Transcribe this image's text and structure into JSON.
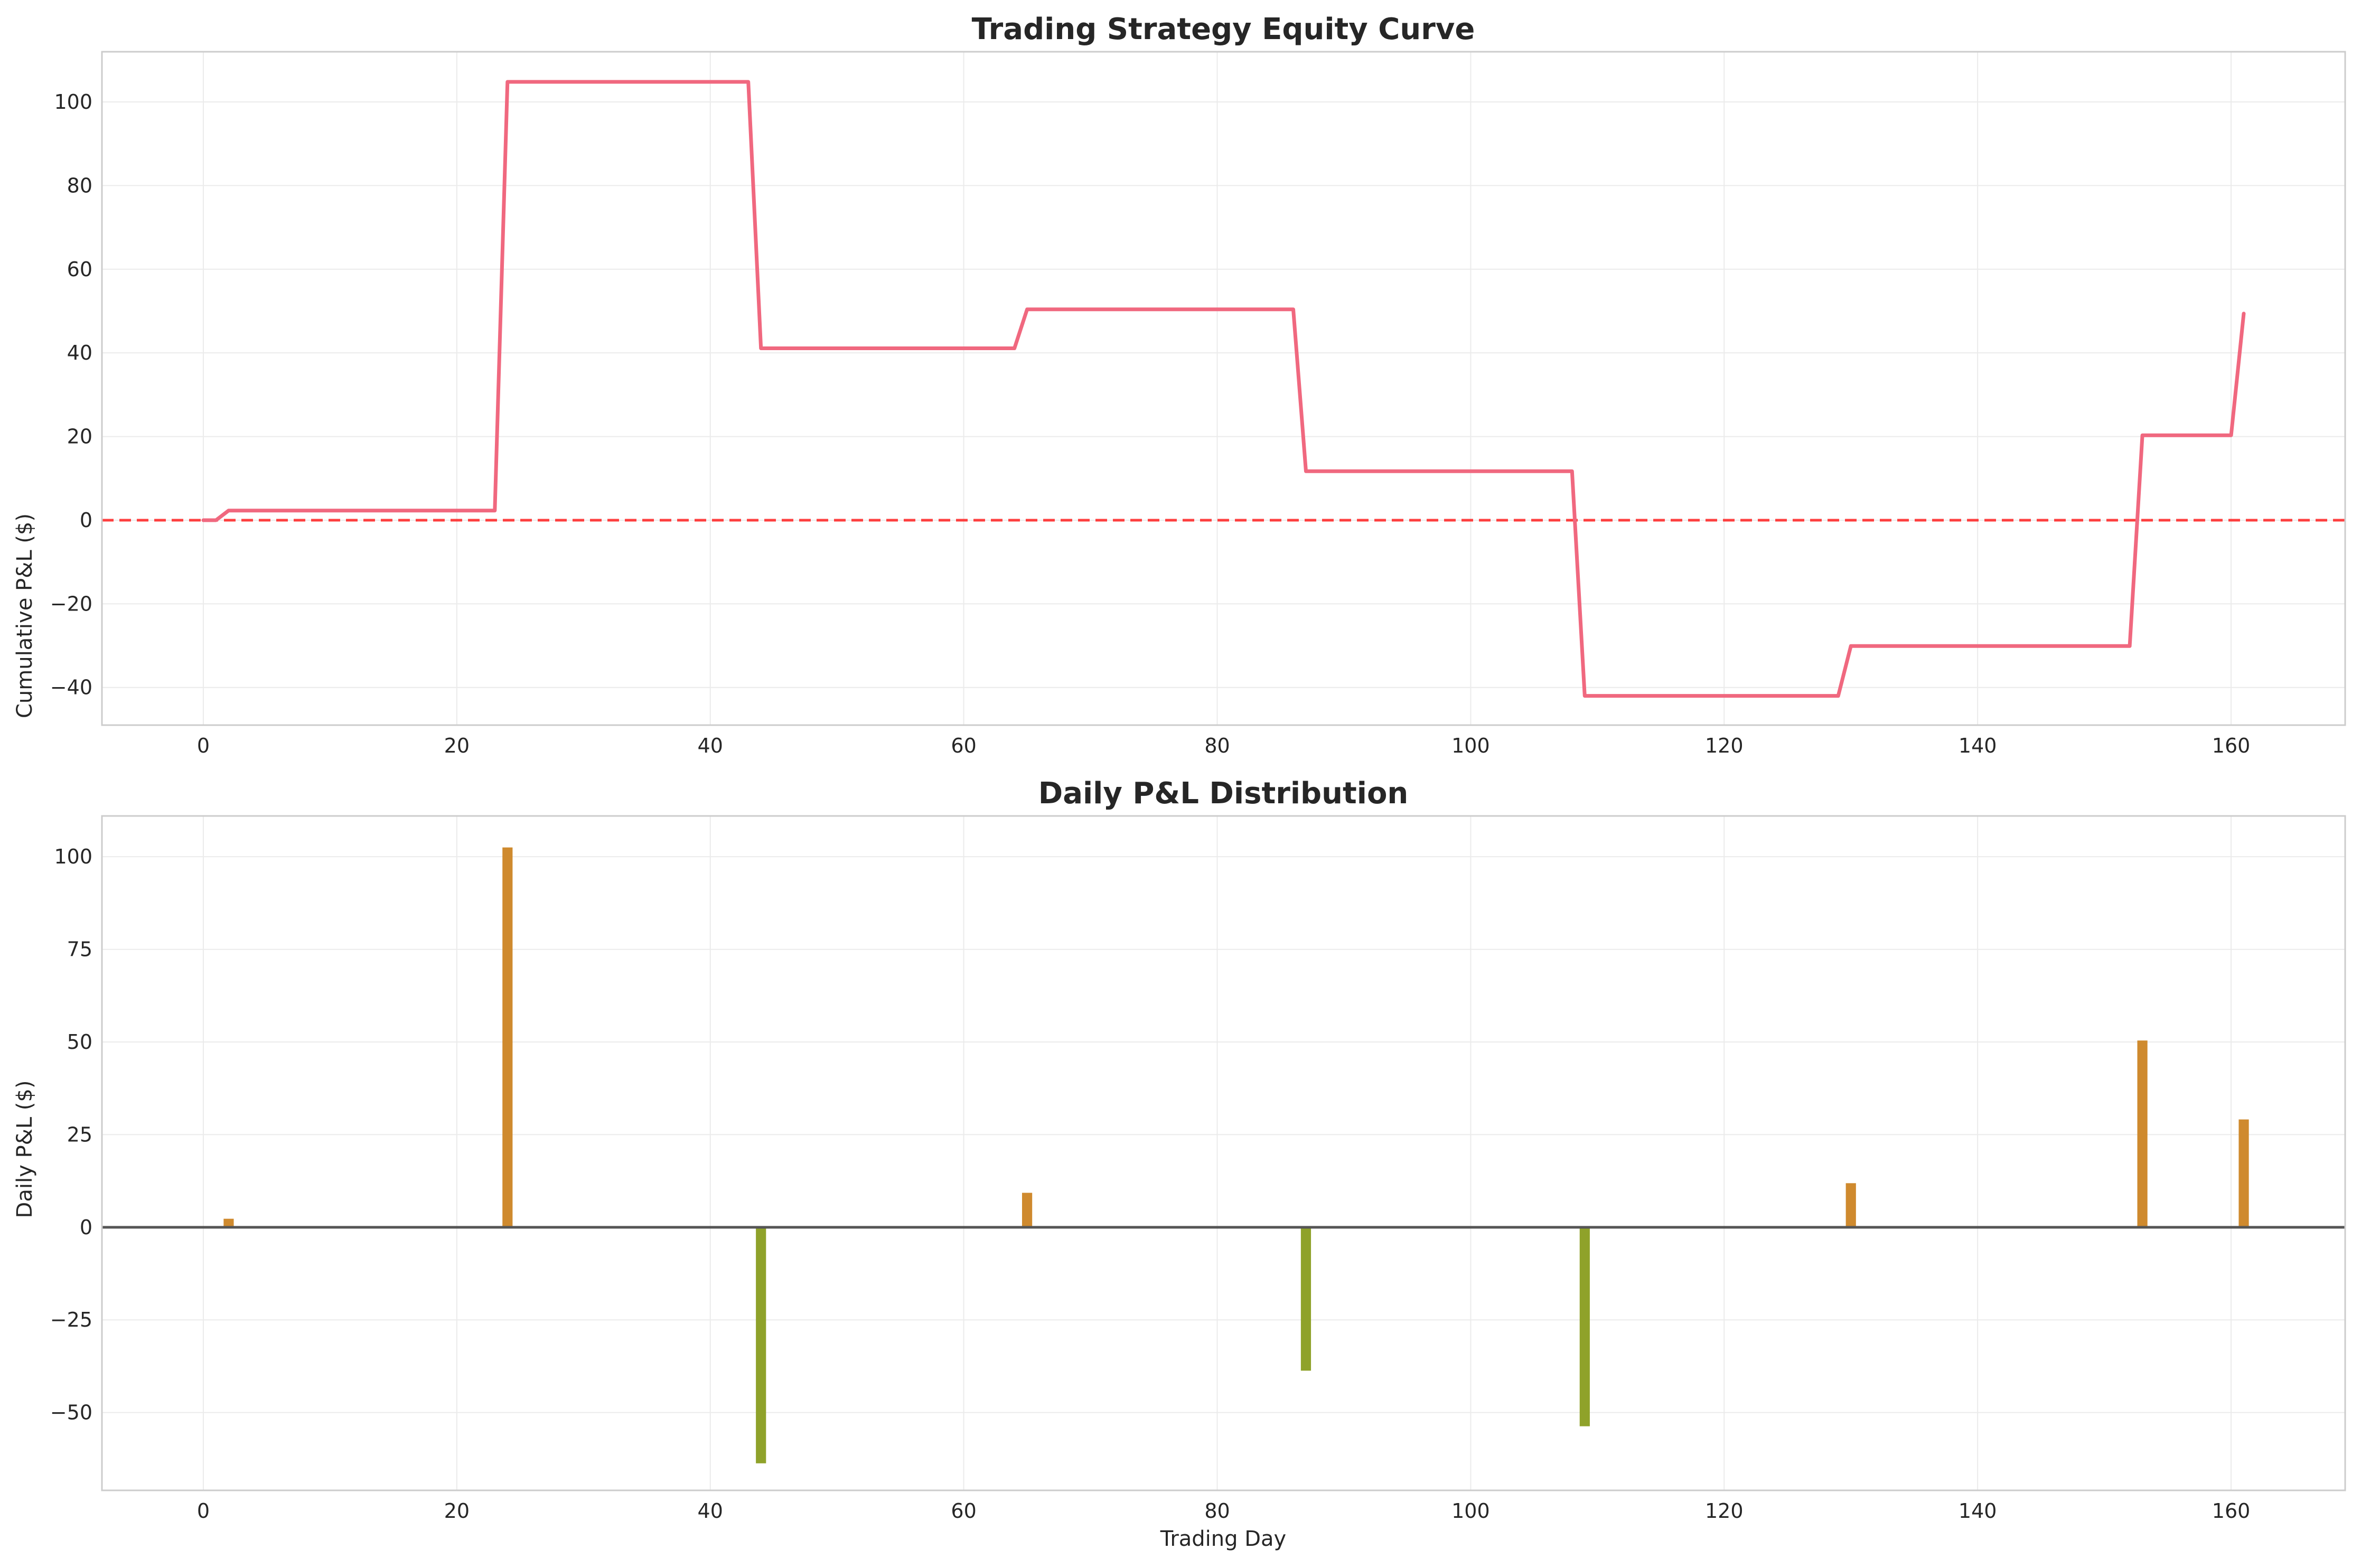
{
  "colors": {
    "equity_line": "#f0687f",
    "zero_ref_line": "#ff2020",
    "positive_bar": "#cf8a2e",
    "negative_bar": "#8fa22a",
    "zero_axis_line": "#555555",
    "grid": "#ebebeb",
    "spine": "#cccccc"
  },
  "chart_data": [
    {
      "type": "line",
      "title": "Trading Strategy Equity Curve",
      "xlabel": "",
      "ylabel": "Cumulative P&L ($)",
      "xlim": [
        -8,
        169
      ],
      "ylim": [
        -49,
        112
      ],
      "xticks": [
        0,
        20,
        40,
        60,
        80,
        100,
        120,
        140,
        160
      ],
      "xtick_labels": [
        "0",
        "20",
        "40",
        "60",
        "80",
        "100",
        "120",
        "140",
        "160"
      ],
      "yticks": [
        -40,
        -20,
        0,
        20,
        40,
        60,
        80,
        100
      ],
      "ytick_labels": [
        "−40",
        "−20",
        "0",
        "20",
        "40",
        "60",
        "80",
        "100"
      ],
      "grid": true,
      "reference_line": {
        "y": 0,
        "style": "dashed"
      },
      "series": [
        {
          "points": [
            [
              0,
              0
            ],
            [
              1,
              0
            ],
            [
              2,
              2.3
            ],
            [
              23,
              2.3
            ],
            [
              24,
              104.8
            ],
            [
              43,
              104.8
            ],
            [
              44,
              41.1
            ],
            [
              64,
              41.1
            ],
            [
              65,
              50.4
            ],
            [
              86,
              50.4
            ],
            [
              87,
              11.7
            ],
            [
              108,
              11.7
            ],
            [
              109,
              -42
            ],
            [
              129,
              -42
            ],
            [
              130,
              -30.1
            ],
            [
              152,
              -30.1
            ],
            [
              153,
              20.3
            ],
            [
              160,
              20.3
            ],
            [
              161,
              49.4
            ]
          ]
        }
      ]
    },
    {
      "type": "bar",
      "title": "Daily P&L Distribution",
      "xlabel": "Trading Day",
      "ylabel": "Daily P&L ($)",
      "xlim": [
        -8,
        169
      ],
      "ylim": [
        -71,
        111
      ],
      "xticks": [
        0,
        20,
        40,
        60,
        80,
        100,
        120,
        140,
        160
      ],
      "xtick_labels": [
        "0",
        "20",
        "40",
        "60",
        "80",
        "100",
        "120",
        "140",
        "160"
      ],
      "yticks": [
        -50,
        -25,
        0,
        25,
        50,
        75,
        100
      ],
      "ytick_labels": [
        "−50",
        "−25",
        "0",
        "25",
        "50",
        "75",
        "100"
      ],
      "grid": true,
      "reference_line": {
        "y": 0,
        "style": "solid"
      },
      "bar_width_days": 0.8,
      "x": [
        2,
        24,
        44,
        65,
        87,
        109,
        130,
        153,
        161
      ],
      "values": [
        2.3,
        102.5,
        -63.7,
        9.3,
        -38.7,
        -53.7,
        11.9,
        50.4,
        29.1
      ]
    }
  ]
}
